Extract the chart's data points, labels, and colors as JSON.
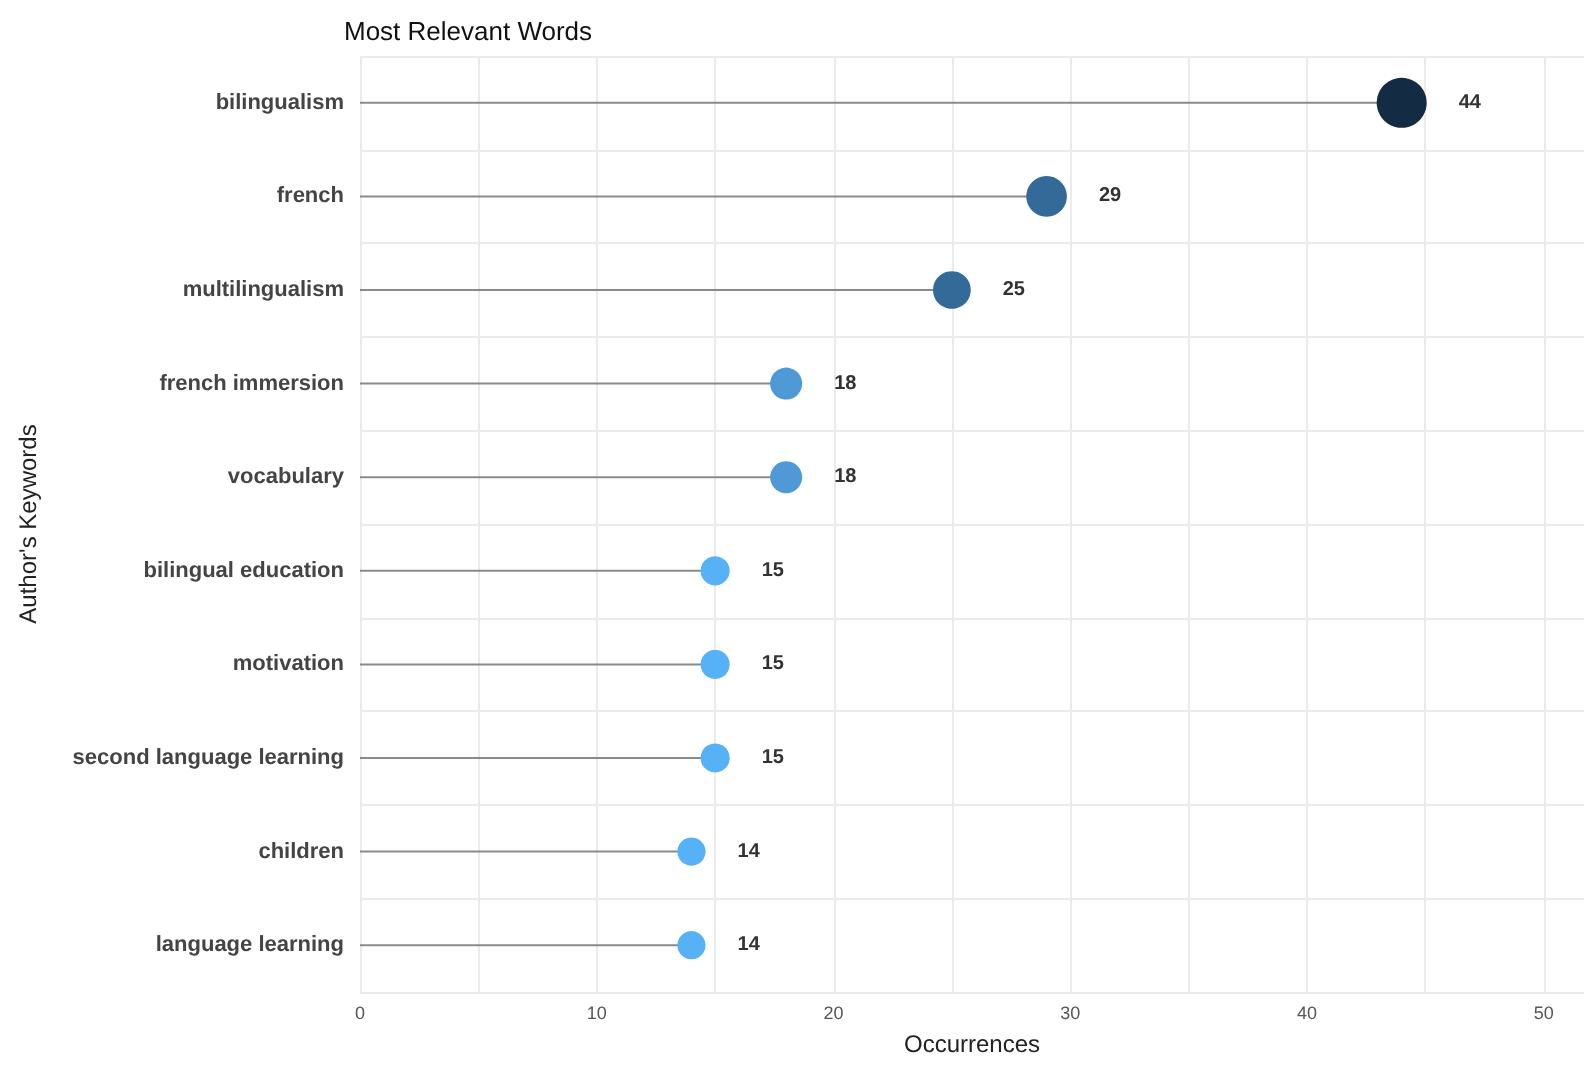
{
  "chart_data": {
    "type": "lollipop",
    "orientation": "horizontal",
    "title": "Most Relevant Words",
    "xlabel": "Occurrences",
    "ylabel": "Author's Keywords",
    "categories": [
      "bilingualism",
      "french",
      "multilingualism",
      "french immersion",
      "vocabulary",
      "bilingual education",
      "motivation",
      "second language learning",
      "children",
      "language learning"
    ],
    "values": [
      44,
      29,
      25,
      18,
      18,
      15,
      15,
      15,
      14,
      14
    ],
    "colors": [
      "#132b43",
      "#336a98",
      "#336a98",
      "#4f9ad6",
      "#4f9ad6",
      "#56b1f7",
      "#56b1f7",
      "#56b1f7",
      "#56b1f7",
      "#56b1f7"
    ],
    "xlim": [
      0,
      51.7
    ],
    "xticks": [
      0,
      {
        "value": 5,
        "label": null
      },
      10,
      {
        "value": 15,
        "label": null
      },
      20,
      {
        "value": 25,
        "label": null
      },
      30,
      {
        "value": 35,
        "label": null
      },
      40,
      {
        "value": 45,
        "label": null
      },
      50
    ],
    "sizes": [
      1,
      0.66,
      0.57,
      0.41,
      0.41,
      0.34,
      0.34,
      0.34,
      0.32,
      0.32
    ],
    "grid": true,
    "data_labels": true,
    "marker": "circle"
  }
}
